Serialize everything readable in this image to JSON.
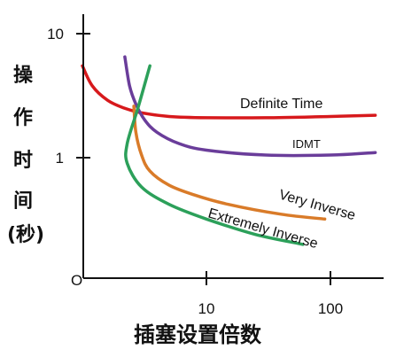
{
  "chart_data": {
    "type": "line",
    "xlabel": "插塞设置倍数",
    "ylabel": [
      "操",
      "作",
      "时",
      "间",
      "(秒)"
    ],
    "x_scale": "log",
    "y_scale": "log",
    "origin_label": "O",
    "x_ticks": [
      {
        "value": 10,
        "label": "10"
      },
      {
        "value": 100,
        "label": "100"
      }
    ],
    "y_ticks": [
      {
        "value": 1,
        "label": "1"
      },
      {
        "value": 10,
        "label": "10"
      }
    ],
    "xlim": [
      1,
      230
    ],
    "ylim": [
      0.09,
      15
    ],
    "grid": false,
    "legend": "none",
    "series": [
      {
        "name": "Definite Time",
        "color": "#d7191c",
        "x": [
          1,
          1.2,
          1.6,
          2.2,
          3,
          5,
          10,
          30,
          100,
          230
        ],
        "y": [
          5.5,
          3.8,
          2.9,
          2.5,
          2.3,
          2.15,
          2.1,
          2.1,
          2.15,
          2.2
        ]
      },
      {
        "name": "IDMT",
        "color": "#6a3d9a",
        "x": [
          2.2,
          2.4,
          2.7,
          3.2,
          4,
          6,
          10,
          30,
          100,
          230
        ],
        "y": [
          6.5,
          3.8,
          2.7,
          2.0,
          1.6,
          1.3,
          1.15,
          1.05,
          1.05,
          1.1
        ]
      },
      {
        "name": "Very Inverse",
        "color": "#d97b29",
        "x": [
          2.6,
          2.7,
          3,
          3.5,
          5,
          8,
          15,
          40,
          90
        ],
        "y": [
          2.6,
          1.6,
          1.05,
          0.78,
          0.6,
          0.5,
          0.42,
          0.35,
          0.32
        ]
      },
      {
        "name": "Extremely Inverse",
        "color": "#2ca05a",
        "x": [
          3.5,
          2.8,
          2.3,
          2.3,
          3,
          5,
          10,
          25,
          60
        ],
        "y": [
          5.5,
          2.5,
          1.3,
          0.9,
          0.58,
          0.42,
          0.32,
          0.24,
          0.2
        ]
      }
    ]
  }
}
